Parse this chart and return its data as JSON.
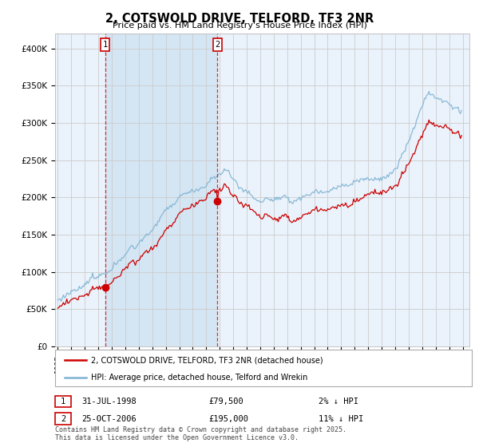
{
  "title": "2, COTSWOLD DRIVE, TELFORD, TF3 2NR",
  "subtitle": "Price paid vs. HM Land Registry's House Price Index (HPI)",
  "legend_line1": "2, COTSWOLD DRIVE, TELFORD, TF3 2NR (detached house)",
  "legend_line2": "HPI: Average price, detached house, Telford and Wrekin",
  "footnote": "Contains HM Land Registry data © Crown copyright and database right 2025.\nThis data is licensed under the Open Government Licence v3.0.",
  "sale1_date": "31-JUL-1998",
  "sale1_price": 79500,
  "sale1_year": 1998.54,
  "sale1_label": "1",
  "sale1_pct": "2% ↓ HPI",
  "sale2_date": "25-OCT-2006",
  "sale2_price": 195000,
  "sale2_year": 2006.81,
  "sale2_label": "2",
  "sale2_pct": "11% ↓ HPI",
  "ylim": [
    0,
    420000
  ],
  "yticks": [
    0,
    50000,
    100000,
    150000,
    200000,
    250000,
    300000,
    350000,
    400000
  ],
  "ytick_labels": [
    "£0",
    "£50K",
    "£100K",
    "£150K",
    "£200K",
    "£250K",
    "£300K",
    "£350K",
    "£400K"
  ],
  "hpi_color": "#7fb3d3",
  "price_color": "#cc0000",
  "dashed_line_color": "#cc0000",
  "grid_color": "#cccccc",
  "background_color": "#ffffff",
  "plot_bg_color": "#eaf2fb",
  "shade_color": "#d0e8f5"
}
